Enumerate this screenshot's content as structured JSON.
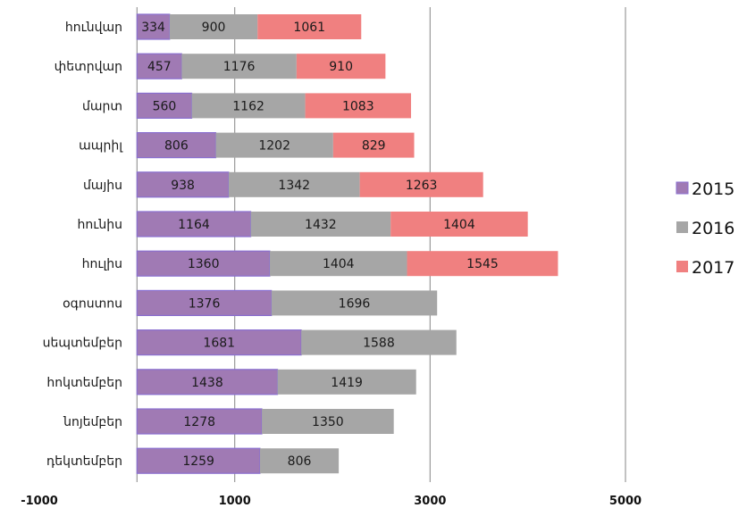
{
  "chart_data": {
    "type": "bar",
    "orientation": "horizontal",
    "stacked": true,
    "categories": [
      "հունվար",
      "փետրվար",
      "մարտ",
      "ապրիլ",
      "մայիս",
      "հունիս",
      "հուլիս",
      "օգոստոս",
      "սեպտեմբեր",
      "հոկտեմբեր",
      "նոյեմբեր",
      "դեկտեմբեր"
    ],
    "series": [
      {
        "name": "2015",
        "color": "#a07ab4",
        "values": [
          334,
          457,
          560,
          806,
          938,
          1164,
          1360,
          1376,
          1681,
          1438,
          1278,
          1259
        ]
      },
      {
        "name": "2016",
        "color": "#a6a6a6",
        "values": [
          900,
          1176,
          1162,
          1202,
          1342,
          1432,
          1404,
          1696,
          1588,
          1419,
          1350,
          806
        ]
      },
      {
        "name": "2017",
        "color": "#f08080",
        "values": [
          1061,
          910,
          1083,
          829,
          1263,
          1404,
          1545,
          null,
          null,
          null,
          null,
          null
        ]
      }
    ],
    "xlim": [
      -1000,
      5000
    ],
    "xticks": [
      "-1000",
      "1000",
      "3000",
      "5000"
    ],
    "grid": "vertical",
    "legend": "right"
  }
}
